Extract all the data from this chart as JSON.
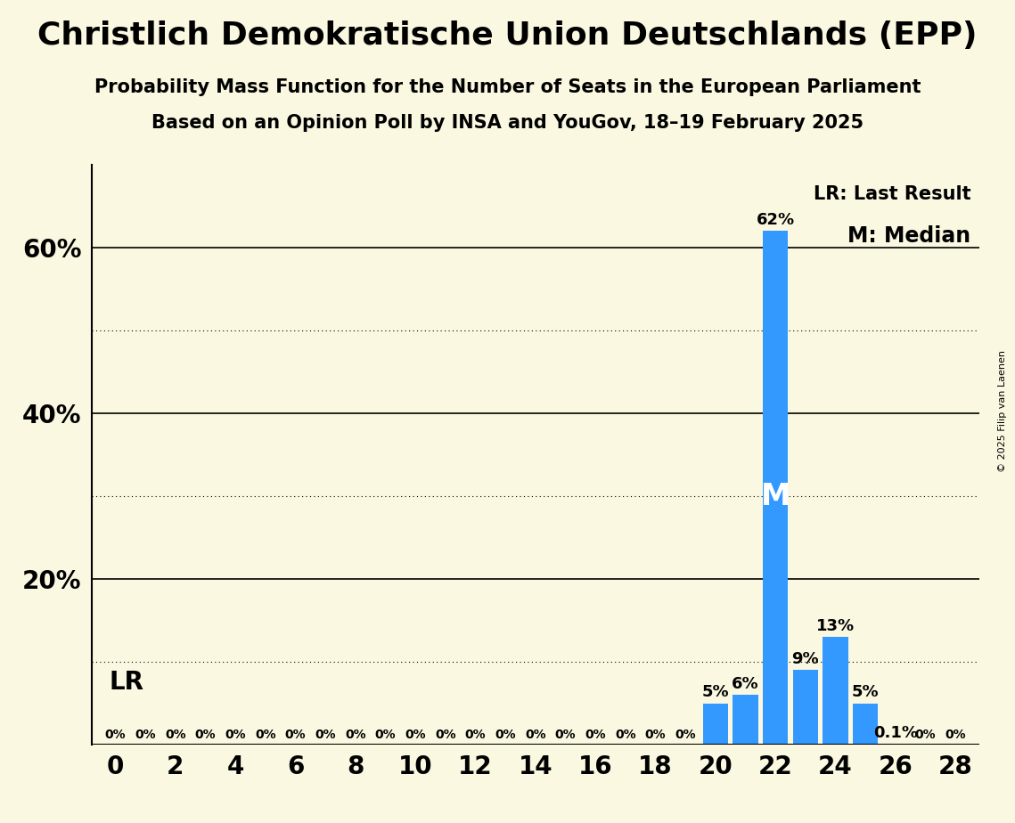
{
  "title": "Christlich Demokratische Union Deutschlands (EPP)",
  "subtitle1": "Probability Mass Function for the Number of Seats in the European Parliament",
  "subtitle2": "Based on an Opinion Poll by INSA and YouGov, 18–19 February 2025",
  "copyright": "© 2025 Filip van Laenen",
  "seats": [
    0,
    1,
    2,
    3,
    4,
    5,
    6,
    7,
    8,
    9,
    10,
    11,
    12,
    13,
    14,
    15,
    16,
    17,
    18,
    19,
    20,
    21,
    22,
    23,
    24,
    25,
    26,
    27,
    28
  ],
  "probabilities": [
    0,
    0,
    0,
    0,
    0,
    0,
    0,
    0,
    0,
    0,
    0,
    0,
    0,
    0,
    0,
    0,
    0,
    0,
    0,
    0,
    5,
    6,
    62,
    9,
    13,
    5,
    0.1,
    0,
    0
  ],
  "bar_color": "#3399FF",
  "background_color": "#FAF8E0",
  "median_seat": 22,
  "last_result_seat": 0,
  "legend_lr": "LR: Last Result",
  "legend_m": "M: Median",
  "ylim_max": 70,
  "xlabel_ticks": [
    0,
    2,
    4,
    6,
    8,
    10,
    12,
    14,
    16,
    18,
    20,
    22,
    24,
    26,
    28
  ],
  "ytick_positions": [
    20,
    40,
    60
  ],
  "ytick_labels": [
    "20%",
    "40%",
    "60%"
  ],
  "solid_gridlines": [
    20,
    40,
    60
  ],
  "dotted_gridlines": [
    10,
    30,
    50
  ],
  "bar_labels": {
    "20": "5%",
    "21": "6%",
    "22": "62%",
    "23": "9%",
    "24": "13%",
    "25": "5%",
    "26": "0.1%"
  },
  "zero_label": "0%",
  "title_fontsize": 26,
  "subtitle_fontsize": 15,
  "tick_fontsize": 20,
  "bar_label_fontsize_main": 13,
  "bar_label_fontsize_zero": 10
}
